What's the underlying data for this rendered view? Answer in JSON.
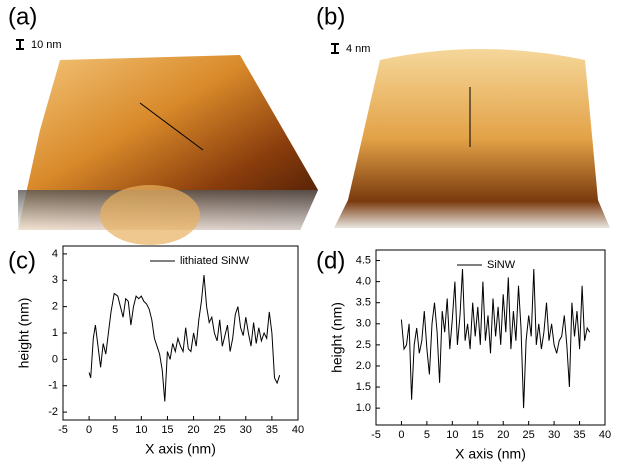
{
  "panels": [
    {
      "label": "(a)",
      "scale_bar": "10 nm"
    },
    {
      "label": "(b)",
      "scale_bar": "4 nm"
    }
  ],
  "chart_data": [
    {
      "type": "line",
      "panel_label": "(c)",
      "x_label": "X axis (nm)",
      "y_label": "height (nm)",
      "x": [
        0,
        0.3,
        0.8,
        1.2,
        1.7,
        2.2,
        2.7,
        3.2,
        3.7,
        4.2,
        4.8,
        5.5,
        6.0,
        6.5,
        7.0,
        7.5,
        8.0,
        8.5,
        9.0,
        9.5,
        10.0,
        10.5,
        11.0,
        11.5,
        12.0,
        12.5,
        13.0,
        13.5,
        14.0,
        14.5,
        15.0,
        15.5,
        16.0,
        16.5,
        17.0,
        17.5,
        18.0,
        18.5,
        19.0,
        19.5,
        20.0,
        20.5,
        21.0,
        21.5,
        22.0,
        22.5,
        23.0,
        23.5,
        24.0,
        24.5,
        25.0,
        25.5,
        26.0,
        26.5,
        27.0,
        27.5,
        28.0,
        28.5,
        29.0,
        29.5,
        30.0,
        30.5,
        31.0,
        31.5,
        32.0,
        32.5,
        33.0,
        33.5,
        34.0,
        34.5,
        35.0,
        35.5,
        36.0,
        36.5
      ],
      "series": [
        {
          "name": "lithiated SiNW",
          "color": "#000000",
          "values": [
            -0.5,
            -0.7,
            0.8,
            1.3,
            0.5,
            -0.3,
            0.6,
            0.2,
            1.0,
            1.8,
            2.5,
            2.4,
            2.0,
            1.6,
            2.3,
            2.2,
            1.3,
            2.0,
            2.4,
            2.3,
            2.4,
            2.2,
            2.1,
            1.9,
            1.5,
            0.8,
            0.5,
            0.2,
            -0.4,
            -1.6,
            0.3,
            0.0,
            0.6,
            0.3,
            0.8,
            0.5,
            0.3,
            1.2,
            0.4,
            0.3,
            1.0,
            0.5,
            1.5,
            2.2,
            3.2,
            2.0,
            1.4,
            1.6,
            1.0,
            0.7,
            1.5,
            0.5,
            0.9,
            1.3,
            0.3,
            0.8,
            1.7,
            2.0,
            1.2,
            0.9,
            1.6,
            1.0,
            0.5,
            1.4,
            0.6,
            1.2,
            0.7,
            1.0,
            0.8,
            1.8,
            1.0,
            -0.7,
            -0.9,
            -0.6
          ]
        }
      ],
      "xlim": [
        -5,
        40
      ],
      "xticks": [
        -5,
        0,
        5,
        10,
        15,
        20,
        25,
        30,
        35,
        40
      ],
      "ylim": [
        -2.3,
        4.3
      ],
      "yticks": [
        -2,
        -1,
        0,
        1,
        2,
        3,
        4
      ],
      "legend": "upper right"
    },
    {
      "type": "line",
      "panel_label": "(d)",
      "x_label": "X axis (nm)",
      "y_label": "height (nm)",
      "x": [
        0,
        0.5,
        1,
        1.5,
        2,
        2.5,
        3,
        3.5,
        4,
        4.5,
        5,
        5.5,
        6,
        6.5,
        7,
        7.5,
        8,
        8.5,
        9,
        9.5,
        10,
        10.5,
        11,
        11.5,
        12,
        12.5,
        13,
        13.5,
        14,
        14.5,
        15,
        15.5,
        16,
        16.5,
        17,
        17.5,
        18,
        18.5,
        19,
        19.5,
        20,
        20.5,
        21,
        21.5,
        22,
        22.5,
        23,
        23.5,
        24,
        24.5,
        25,
        25.5,
        26,
        26.5,
        27,
        27.5,
        28,
        28.5,
        29,
        29.5,
        30,
        30.5,
        31,
        31.5,
        32,
        32.5,
        33,
        33.5,
        34,
        34.5,
        35,
        35.5,
        36,
        36.5,
        37
      ],
      "series": [
        {
          "name": "SiNW",
          "color": "#000000",
          "values": [
            3.1,
            2.4,
            2.5,
            3.0,
            1.2,
            2.5,
            2.9,
            2.3,
            2.6,
            3.3,
            2.4,
            1.8,
            3.0,
            3.5,
            2.8,
            1.6,
            3.3,
            2.8,
            3.6,
            2.4,
            3.1,
            4.0,
            2.5,
            3.2,
            4.3,
            2.6,
            3.0,
            2.4,
            3.5,
            2.7,
            3.4,
            2.5,
            4.0,
            2.6,
            3.2,
            2.3,
            3.6,
            2.7,
            3.4,
            2.5,
            3.7,
            2.8,
            4.1,
            2.4,
            3.3,
            2.6,
            3.9,
            2.9,
            1.0,
            2.6,
            3.2,
            2.7,
            4.3,
            2.5,
            3.0,
            2.4,
            2.8,
            3.5,
            2.6,
            3.0,
            2.5,
            2.3,
            2.6,
            2.7,
            3.2,
            2.5,
            1.5,
            3.5,
            2.7,
            3.3,
            2.4,
            3.9,
            2.6,
            2.9,
            2.8
          ]
        }
      ],
      "xlim": [
        -5,
        40
      ],
      "xticks": [
        -5,
        0,
        5,
        10,
        15,
        20,
        25,
        30,
        35,
        40
      ],
      "ylim": [
        0.6,
        4.75
      ],
      "yticks": [
        {
          "value": 1,
          "label": "1.0"
        },
        1.5,
        {
          "value": 2,
          "label": "2.0"
        },
        2.5,
        {
          "value": 3,
          "label": "3.0"
        },
        3.5,
        {
          "value": 4,
          "label": "4.0"
        },
        4.5
      ],
      "legend": "upper right"
    }
  ]
}
